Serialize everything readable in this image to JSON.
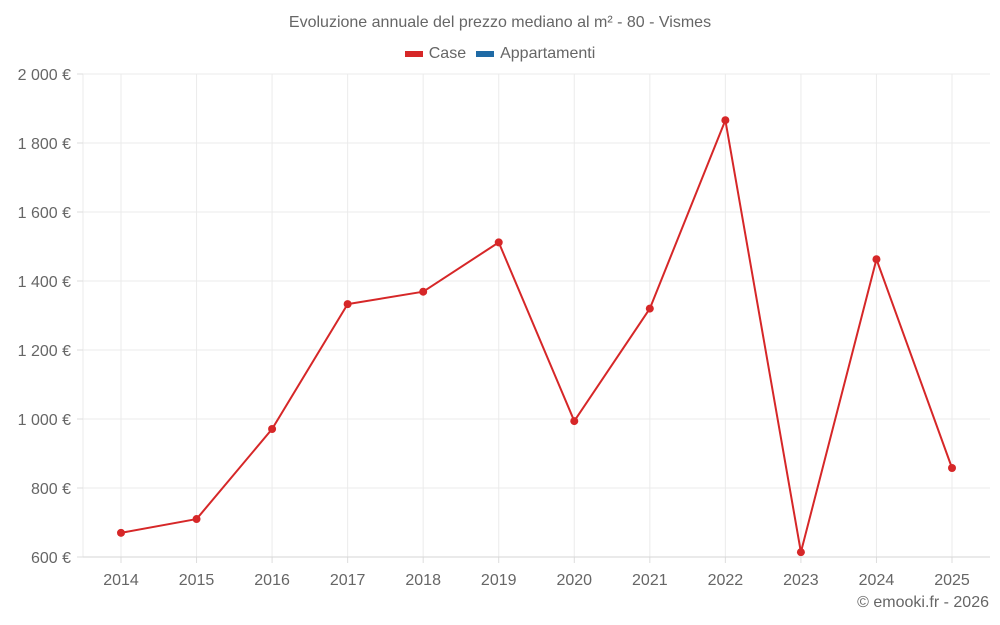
{
  "chart_data": {
    "type": "line",
    "title": "Evoluzione annuale del prezzo mediano al m² - 80 - Vismes",
    "xlabel": "",
    "ylabel": "",
    "categories": [
      "2014",
      "2015",
      "2016",
      "2017",
      "2018",
      "2019",
      "2020",
      "2021",
      "2022",
      "2023",
      "2024",
      "2025"
    ],
    "series": [
      {
        "name": "Case",
        "color": "#d62728",
        "values": [
          670,
          710,
          971,
          1333,
          1369,
          1512,
          994,
          1320,
          1866,
          614,
          1463,
          858
        ]
      },
      {
        "name": "Appartamenti",
        "color": "#1f6aa5",
        "values": []
      }
    ],
    "ylim": [
      600,
      2000
    ],
    "yticks": [
      600,
      800,
      1000,
      1200,
      1400,
      1600,
      1800,
      2000
    ],
    "ytick_labels": [
      "600 €",
      "800 €",
      "1 000 €",
      "1 200 €",
      "1 400 €",
      "1 600 €",
      "1 800 €",
      "2 000 €"
    ],
    "grid": true,
    "legend_position": "top"
  },
  "legend": [
    {
      "label": "Case",
      "color": "#d62728"
    },
    {
      "label": "Appartamenti",
      "color": "#1f6aa5"
    }
  ],
  "credit": "© emooki.fr - 2026"
}
